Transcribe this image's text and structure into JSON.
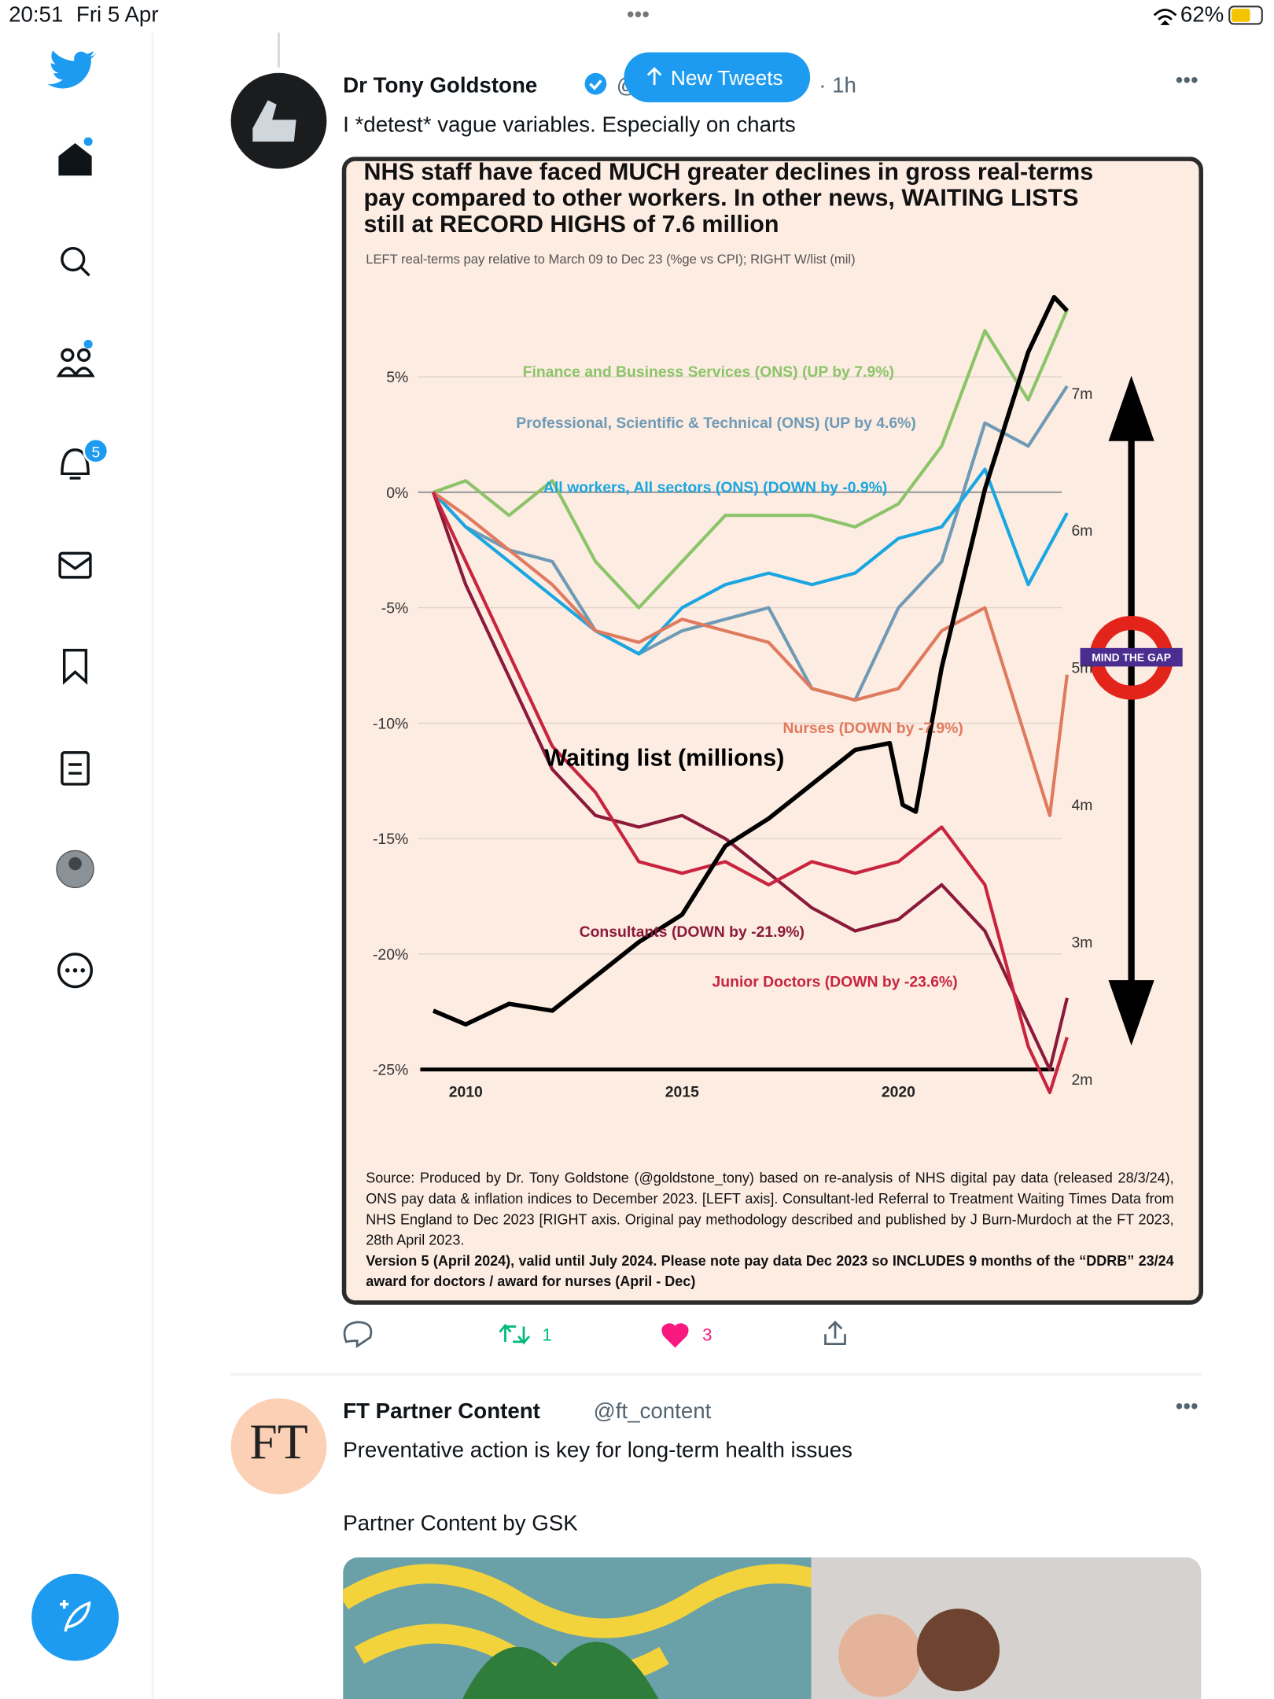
{
  "status": {
    "time": "20:51",
    "date": "Fri 5 Apr",
    "battery": "62%"
  },
  "sidebar": {
    "notifications": "5"
  },
  "new_tweets": "New Tweets",
  "tweets": [
    {
      "name": "Dr Tony Goldstone",
      "handle": "@",
      "time": "· 1h",
      "text": "I *detest* vague variables. Especially on charts",
      "retweets": "1",
      "likes": "3"
    },
    {
      "name": "FT Partner Content",
      "handle": "@ft_content",
      "avatar": "FT",
      "text": "Preventative action is key for long-term health issues",
      "sponsor": "Partner Content by GSK"
    }
  ],
  "chart_data": {
    "type": "line",
    "title": "NHS staff have faced MUCH greater declines in gross real-terms pay compared to other workers. In other news, WAITING LISTS still at RECORD HIGHS of 7.6 million",
    "subtitle": "LEFT real-terms pay relative to March 09 to Dec 23 (%ge vs CPI); RIGHT W/list (mil)",
    "badge": "MIND THE GAP",
    "source": "Source: Produced by Dr. Tony Goldstone (@goldstone_tony) based on re-analysis of NHS digital pay data (released 28/3/24), ONS pay data & inflation indices to December 2023. [LEFT axis]. Consultant-led Referral to Treatment Waiting Times Data from NHS England to Dec 2023 [RIGHT axis. Original pay methodology described and published by J Burn-Murdoch at the FT 2023, 28th April 2023.",
    "version": "Version 5 (April 2024), valid until July 2024. Please note pay data Dec 2023 so INCLUDES 9 months of the “DDRB” 23/24 award for doctors / award for nurses (April - Dec)",
    "xlim": [
      2009,
      2024
    ],
    "xticks": [
      2010,
      2015,
      2020
    ],
    "ylim": [
      -25,
      10
    ],
    "yticks": [
      {
        "value": 5,
        "label": "5%"
      },
      {
        "value": 0,
        "label": "0%"
      },
      {
        "value": -5,
        "label": "-5%"
      },
      {
        "value": -10,
        "label": "-10%"
      },
      {
        "value": -15,
        "label": "-15%"
      },
      {
        "value": -20,
        "label": "-20%"
      },
      {
        "value": -25,
        "label": "-25%"
      }
    ],
    "y2lim": [
      2,
      8
    ],
    "y2ticks": [
      {
        "value": 2,
        "label": "2m"
      },
      {
        "value": 3,
        "label": "3m"
      },
      {
        "value": 4,
        "label": "4m"
      },
      {
        "value": 5,
        "label": "5m"
      },
      {
        "value": 6,
        "label": "6m"
      },
      {
        "value": 7,
        "label": "7m"
      }
    ],
    "series": [
      {
        "name": "Finance and Business Services (ONS) (UP by 7.9%)",
        "color": "#8cc46a",
        "x": [
          2009.25,
          2010,
          2011,
          2012,
          2013,
          2014,
          2015,
          2016,
          2017,
          2018,
          2019,
          2020,
          2021,
          2022,
          2023,
          2023.9
        ],
        "values": [
          0,
          0.5,
          -1,
          0.5,
          -3,
          -5,
          -3,
          -1,
          -1,
          -1,
          -1.5,
          -0.5,
          2,
          7,
          4,
          7.9
        ]
      },
      {
        "name": "Professional, Scientific & Technical (ONS) (UP by 4.6%)",
        "color": "#6f9ab5",
        "x": [
          2009.25,
          2010,
          2011,
          2012,
          2013,
          2014,
          2015,
          2016,
          2017,
          2018,
          2019,
          2020,
          2021,
          2022,
          2023,
          2023.9
        ],
        "values": [
          0,
          -1.5,
          -2.5,
          -3,
          -6,
          -7,
          -6,
          -5.5,
          -5,
          -8.5,
          -9,
          -5,
          -3,
          3,
          2,
          4.6
        ]
      },
      {
        "name": "All workers, All sectors (ONS) (DOWN by -0.9%)",
        "color": "#1aa6e0",
        "x": [
          2009.25,
          2010,
          2011,
          2012,
          2013,
          2014,
          2015,
          2016,
          2017,
          2018,
          2019,
          2020,
          2021,
          2022,
          2023,
          2023.9
        ],
        "values": [
          0,
          -1.5,
          -3,
          -4.5,
          -6,
          -7,
          -5,
          -4,
          -3.5,
          -4,
          -3.5,
          -2,
          -1.5,
          1,
          -4,
          -0.9
        ]
      },
      {
        "name": "Nurses (DOWN by -7.9%)",
        "color": "#e07a5f",
        "x": [
          2009.25,
          2010,
          2011,
          2012,
          2013,
          2014,
          2015,
          2016,
          2017,
          2018,
          2019,
          2020,
          2021,
          2022,
          2023,
          2023.5,
          2023.9
        ],
        "values": [
          0,
          -1,
          -2.5,
          -4,
          -6,
          -6.5,
          -5.5,
          -6,
          -6.5,
          -8.5,
          -9,
          -8.5,
          -6,
          -5,
          -11,
          -14,
          -7.9
        ]
      },
      {
        "name": "Consultants (DOWN by -21.9%)",
        "color": "#8b1a3a",
        "x": [
          2009.25,
          2010,
          2011,
          2012,
          2013,
          2014,
          2015,
          2016,
          2017,
          2018,
          2019,
          2020,
          2021,
          2022,
          2023,
          2023.5,
          2023.9
        ],
        "values": [
          0,
          -4,
          -8,
          -12,
          -14,
          -14.5,
          -14,
          -15,
          -16.5,
          -18,
          -19,
          -18.5,
          -17,
          -19,
          -23,
          -25,
          -21.9
        ]
      },
      {
        "name": "Junior Doctors (DOWN by -23.6%)",
        "color": "#c8243f",
        "x": [
          2009.25,
          2010,
          2011,
          2012,
          2013,
          2014,
          2015,
          2016,
          2017,
          2018,
          2019,
          2020,
          2021,
          2022,
          2023,
          2023.5,
          2023.9
        ],
        "values": [
          0,
          -3,
          -7,
          -11,
          -13,
          -16,
          -16.5,
          -16,
          -17,
          -16,
          -16.5,
          -16,
          -14.5,
          -17,
          -24,
          -26,
          -23.6
        ]
      },
      {
        "name": "Waiting list (millions)",
        "color": "#000000",
        "axis": "y2",
        "x": [
          2009.25,
          2010,
          2011,
          2012,
          2013,
          2014,
          2015,
          2016,
          2017,
          2018,
          2019,
          2019.8,
          2020.1,
          2020.4,
          2021,
          2022,
          2023,
          2023.6,
          2023.9
        ],
        "values": [
          2.5,
          2.4,
          2.55,
          2.5,
          2.75,
          3.0,
          3.2,
          3.7,
          3.9,
          4.15,
          4.4,
          4.45,
          4.0,
          3.95,
          5.0,
          6.3,
          7.3,
          7.7,
          7.6
        ]
      }
    ]
  }
}
